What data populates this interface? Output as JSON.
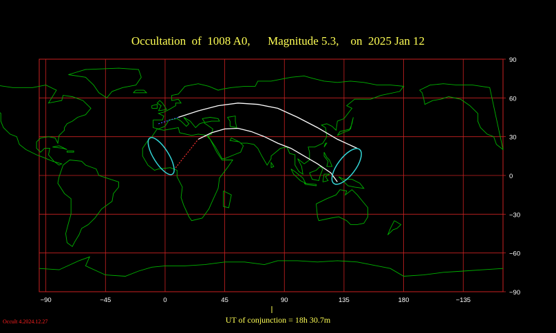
{
  "title": "Occultation  of  1008 A0,      Magnitude 5.3,    on  2025 Jan 12",
  "footer": "UT of conjunction = 18h 30.7m",
  "version": "Occult 4.2024.12.27",
  "colors": {
    "background": "#000000",
    "grid": "#cc2222",
    "coastline": "#00b400",
    "path": "#ffffff",
    "limits": "#33d6d6",
    "title": "#ffff55",
    "version": "#ff2020"
  },
  "map": {
    "projection": "equirectangular",
    "lon_range": [
      -95,
      255
    ],
    "lat_range": [
      -90,
      90
    ],
    "lon_ticks": [
      -90,
      -45,
      0,
      45,
      90,
      135,
      180,
      225
    ],
    "lon_tick_labels": [
      "−90",
      "−45",
      "0",
      "45",
      "90",
      "135",
      "180",
      "−135"
    ],
    "lat_ticks": [
      90,
      60,
      30,
      0,
      -30,
      -60,
      -90
    ],
    "lat_tick_labels": [
      "90",
      "60",
      "30",
      "0",
      "−30",
      "−60",
      "−90"
    ]
  }
}
